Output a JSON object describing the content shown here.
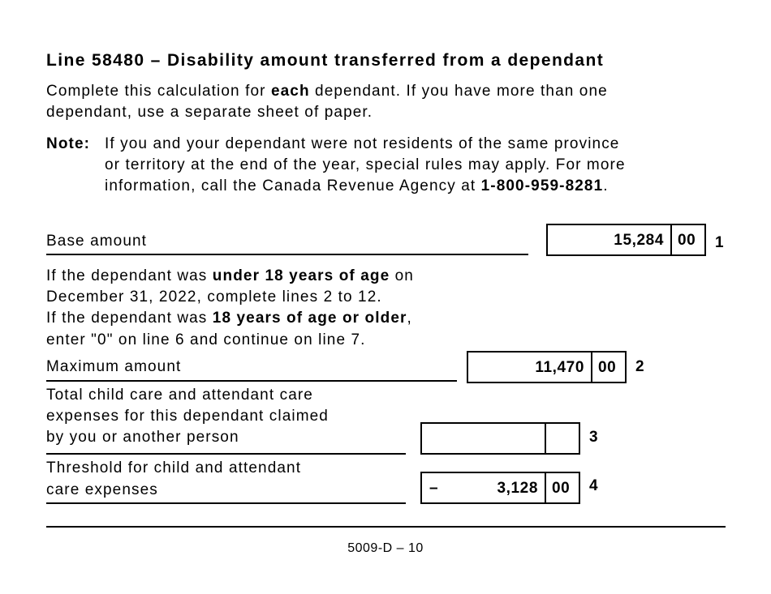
{
  "title": "Line 58480 – Disability amount transferred from a dependant",
  "intro": [
    [
      "Complete this calculation for ",
      "each",
      " dependant. If you have more than one"
    ],
    [
      "dependant, use a separate sheet of paper."
    ]
  ],
  "note": {
    "label": "Note:",
    "lines": [
      [
        "If you and your dependant were not residents of the same province"
      ],
      [
        "or territory at the end of the year, special rules may apply. For more"
      ],
      [
        "information, call the Canada Revenue Agency at ",
        "1-800-959-8281",
        "."
      ]
    ]
  },
  "instructions": [
    [
      "If the dependant was ",
      "under 18 years of age",
      " on"
    ],
    [
      "December 31, 2022, complete lines 2 to 12."
    ],
    [
      "If the dependant was ",
      "18 years of age or older",
      ","
    ],
    [
      "enter \"0\" on line 6 and continue on line 7."
    ]
  ],
  "lines": [
    {
      "label": [
        "Base amount"
      ],
      "dollars": "15,284",
      "cents": "00",
      "number": "1"
    },
    {
      "label": [
        "Maximum amount"
      ],
      "dollars": "11,470",
      "cents": "00",
      "number": "2"
    },
    {
      "label": [
        "Total child care and attendant care",
        "expenses for this dependant claimed",
        "by you or another person"
      ],
      "number": "3"
    },
    {
      "label": [
        "Threshold for child and attendant",
        "care expenses"
      ],
      "sign": "–",
      "dollars": "3,128",
      "cents": "00",
      "number": "4"
    }
  ],
  "footer": "5009-D – 10"
}
